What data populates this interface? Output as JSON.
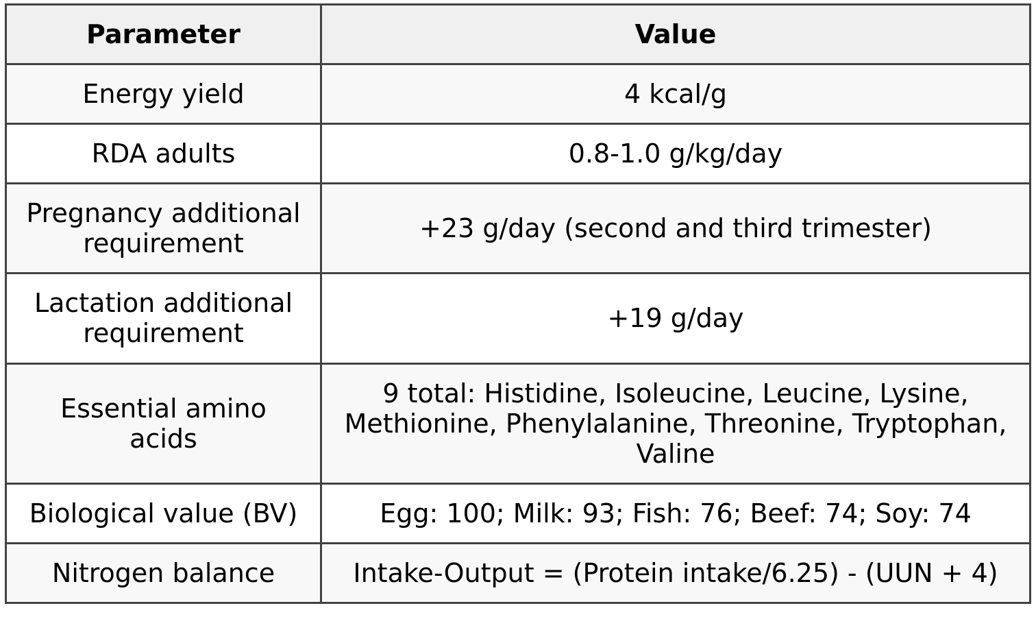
{
  "chart_data": {
    "type": "table",
    "columns": [
      "Parameter",
      "Value"
    ],
    "rows": [
      [
        "Energy yield",
        "4 kcal/g"
      ],
      [
        "RDA adults",
        "0.8-1.0 g/kg/day"
      ],
      [
        "Pregnancy additional requirement",
        "+23 g/day (second and third trimester)"
      ],
      [
        "Lactation additional requirement",
        "+19 g/day"
      ],
      [
        "Essential amino acids",
        "9 total: Histidine, Isoleucine, Leucine, Lysine, Methionine, Phenylalanine, Threonine, Tryptophan, Valine"
      ],
      [
        "Biological value (BV)",
        "Egg: 100; Milk: 93; Fish: 76; Beef: 74; Soy: 74"
      ],
      [
        "Nitrogen balance",
        "Intake-Output = (Protein intake/6.25) - (UUN + 4)"
      ]
    ]
  },
  "table": {
    "columns": [
      {
        "label": "Parameter"
      },
      {
        "label": "Value"
      }
    ],
    "rows": [
      {
        "parameter": "Energy yield",
        "value": "4 kcal/g"
      },
      {
        "parameter": "RDA adults",
        "value": "0.8-1.0 g/kg/day"
      },
      {
        "parameter": "Pregnancy additional requirement",
        "value": "+23 g/day (second and third trimester)"
      },
      {
        "parameter": "Lactation additional requirement",
        "value": "+19 g/day"
      },
      {
        "parameter": "Essential amino acids",
        "value": "9 total: Histidine, Isoleucine, Leucine, Lysine, Methionine, Phenylalanine, Threonine, Tryptophan, Valine"
      },
      {
        "parameter": "Biological value (BV)",
        "value": "Egg: 100; Milk: 93; Fish: 76; Beef: 74; Soy: 74"
      },
      {
        "parameter": "Nitrogen balance",
        "value": "Intake-Output = (Protein intake/6.25) - (UUN + 4)"
      }
    ]
  },
  "colors": {
    "border": "#424242",
    "header_bg": "#f0f0f0",
    "row_odd_bg": "#f8f8f8",
    "row_even_bg": "#ffffff",
    "text": "#000000"
  }
}
